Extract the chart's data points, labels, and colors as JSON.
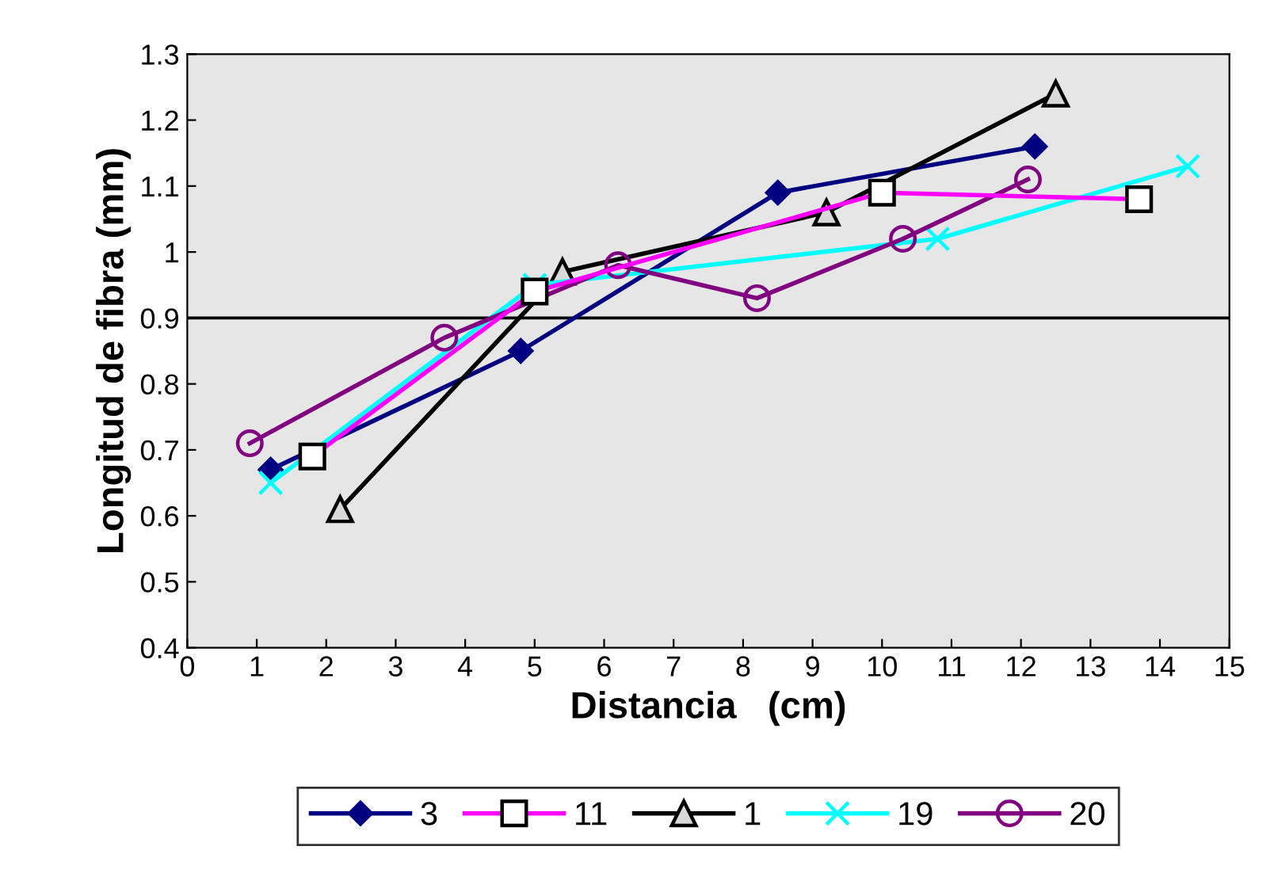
{
  "chart_data": {
    "type": "line",
    "xlabel": "Distancia   (cm)",
    "ylabel": "Longitud de fibra (mm)",
    "xlim": [
      0,
      15
    ],
    "xticks": [
      0,
      1,
      2,
      3,
      4,
      5,
      6,
      7,
      8,
      9,
      10,
      11,
      12,
      13,
      14,
      15
    ],
    "ylim": [
      0.4,
      1.3
    ],
    "yticks": [
      {
        "value": 0.4,
        "label": "0.4"
      },
      {
        "value": 0.5,
        "label": "0.5"
      },
      {
        "value": 0.6,
        "label": "0.6"
      },
      {
        "value": 0.7,
        "label": "0.7"
      },
      {
        "value": 0.8,
        "label": "0.8"
      },
      {
        "value": 0.9,
        "label": "0.9"
      },
      {
        "value": 1,
        "label": "1"
      },
      {
        "value": 1.1,
        "label": "1.1"
      },
      {
        "value": 1.2,
        "label": "1.2"
      },
      {
        "value": 1.3,
        "label": "1.3"
      }
    ],
    "grid": false,
    "legend": "bottom",
    "line_style": "solid",
    "ref_lines": [
      {
        "axis": "y",
        "value": 0.9,
        "color": "#000000"
      }
    ],
    "series": [
      {
        "name": "3",
        "color": "#000080",
        "marker": "diamond",
        "x": [
          1.2,
          4.8,
          8.5,
          12.2
        ],
        "values": [
          0.67,
          0.85,
          1.09,
          1.16
        ]
      },
      {
        "name": "11",
        "color": "#ff00ff",
        "marker": "square",
        "x": [
          1.8,
          5.0,
          10.0,
          13.7
        ],
        "values": [
          0.69,
          0.94,
          1.09,
          1.08
        ]
      },
      {
        "name": "1",
        "color": "#000000",
        "marker": "triangle",
        "x": [
          2.2,
          5.4,
          9.2,
          12.5
        ],
        "values": [
          0.61,
          0.97,
          1.06,
          1.24
        ]
      },
      {
        "name": "19",
        "color": "#00ffff",
        "marker": "cross",
        "x": [
          1.2,
          5.0,
          10.8,
          14.4
        ],
        "values": [
          0.65,
          0.95,
          1.02,
          1.13
        ]
      },
      {
        "name": "20",
        "color": "#800080",
        "marker": "circle",
        "x": [
          0.9,
          3.7,
          6.2,
          8.2,
          10.3,
          12.1
        ],
        "values": [
          0.71,
          0.87,
          0.98,
          0.93,
          1.02,
          1.11
        ]
      }
    ]
  }
}
